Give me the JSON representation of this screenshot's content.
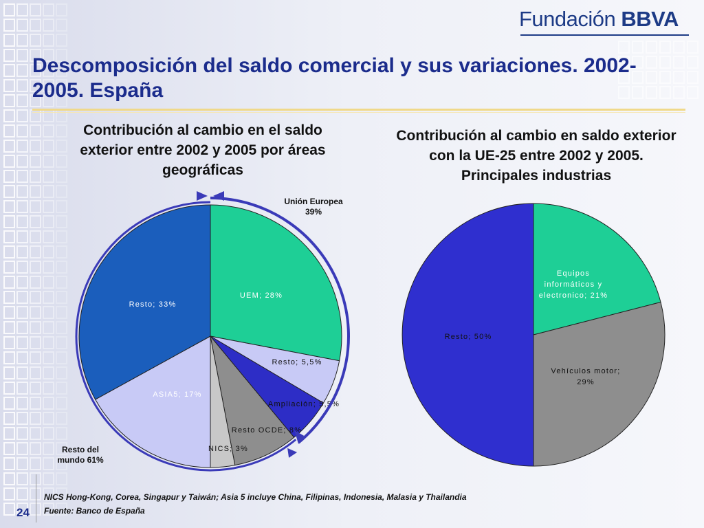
{
  "brand": {
    "logo_text": "Fundación",
    "logo_bold": "BBVA"
  },
  "title": "Descomposición del saldo comercial y sus variaciones. 2002-2005. España",
  "page_number": "24",
  "annotations": {
    "ue_label": "Unión Europea",
    "ue_value": "39%",
    "rest_world_label": "Resto del mundo 61%"
  },
  "footer": {
    "note": "NICS Hong-Kong, Corea, Singapur y Taiwán; Asia 5 incluye China, Filipinas, Indonesia, Malasia y Thailandia",
    "source": "Fuente:  Banco de España"
  },
  "colors": {
    "title": "#1b2c8c",
    "accent": "#3a3ab8"
  },
  "chart_data": [
    {
      "type": "pie",
      "title": "Contribución al cambio en el saldo exterior entre 2002 y 2005 por áreas geográficas",
      "slices": [
        {
          "label": "UEM; 28%",
          "value": 28,
          "color": "#1ecf96",
          "text_color": "#ffffff"
        },
        {
          "label": "Resto; 5,5%",
          "value": 5.5,
          "color": "#c8caf6",
          "text_color": "#111111"
        },
        {
          "label": "Ampliación; 5,5%",
          "value": 5.5,
          "color": "#2d2dc6",
          "text_color": "#111111"
        },
        {
          "label": "Resto OCDE; 8%",
          "value": 8,
          "color": "#8e8e8e",
          "text_color": "#111111"
        },
        {
          "label": "NICS; 3%",
          "value": 3,
          "color": "#c8c8c8",
          "text_color": "#111111"
        },
        {
          "label": "ASIA5; 17%",
          "value": 17,
          "color": "#c8caf6",
          "text_color": "#ffffff"
        },
        {
          "label": "Resto; 33%",
          "value": 33,
          "color": "#1b5ebc",
          "text_color": "#ffffff"
        }
      ]
    },
    {
      "type": "pie",
      "title": "Contribución al cambio en saldo exterior con la UE-25 entre 2002 y 2005. Principales industrias",
      "slices": [
        {
          "label": "Equipos informáticos y electronico; 21%",
          "value": 21,
          "color": "#1ecf96",
          "text_color": "#ffffff"
        },
        {
          "label": "Vehículos motor; 29%",
          "value": 29,
          "color": "#8e8e8e",
          "text_color": "#111111"
        },
        {
          "label": "Resto; 50%",
          "value": 50,
          "color": "#2f2fcf",
          "text_color": "#111111"
        }
      ]
    }
  ]
}
